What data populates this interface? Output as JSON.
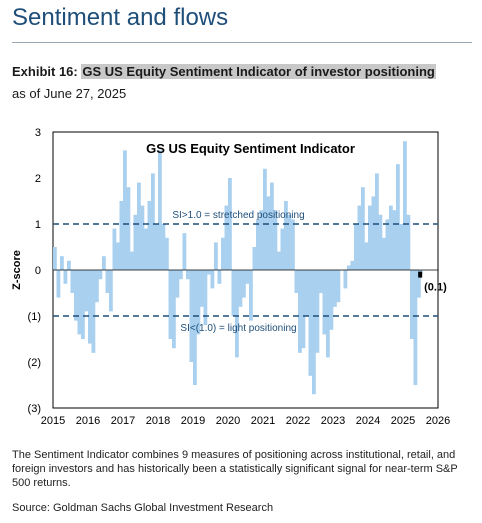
{
  "section_title": "Sentiment and flows",
  "exhibit": {
    "prefix": "Exhibit 16: ",
    "title": "GS US Equity Sentiment Indicator of investor positioning",
    "as_of": "as of June 27, 2025"
  },
  "footnote": "The Sentiment Indicator combines 9 measures of positioning across institutional, retail, and foreign investors and has historically been a statistically significant signal for near-term S&P 500 returns.",
  "source": "Source: Goldman Sachs Global Investment Research",
  "colors": {
    "bar": "#a9d0ef",
    "threshold": "#1f4e79",
    "title_blue": "#1f4e79",
    "latest_marker": "#000000"
  },
  "chart_data": {
    "type": "bar",
    "title": "GS US Equity  Sentiment Indicator",
    "ylabel": "Z-score",
    "xlabel": "",
    "ylim": [
      -3,
      3
    ],
    "xlim": [
      2015,
      2026
    ],
    "x_ticks": [
      "2015",
      "2016",
      "2017",
      "2018",
      "2019",
      "2020",
      "2021",
      "2022",
      "2023",
      "2024",
      "2025",
      "2026"
    ],
    "y_ticks": [
      {
        "value": 3,
        "label": "3"
      },
      {
        "value": 2,
        "label": "2"
      },
      {
        "value": 1,
        "label": "1"
      },
      {
        "value": 0,
        "label": "0"
      },
      {
        "value": -1,
        "label": "(1)"
      },
      {
        "value": -2,
        "label": "(2)"
      },
      {
        "value": -3,
        "label": "(3)"
      }
    ],
    "reference_lines": [
      {
        "y": 1.0,
        "label": "SI>1.0 = stretched positioning"
      },
      {
        "y": -1.0,
        "label": "SI<(1.0) = light positioning"
      }
    ],
    "latest": {
      "x": 2025.49,
      "y": -0.1,
      "label": "(0.1)"
    },
    "series": [
      {
        "x": [
          2015.0,
          2015.1,
          2015.2,
          2015.3,
          2015.4,
          2015.5,
          2015.6,
          2015.7,
          2015.8,
          2015.9,
          2016.0,
          2016.1,
          2016.2,
          2016.3,
          2016.4,
          2016.5,
          2016.6,
          2016.7,
          2016.8,
          2016.9,
          2017.0,
          2017.1,
          2017.2,
          2017.3,
          2017.4,
          2017.5,
          2017.6,
          2017.7,
          2017.8,
          2017.9,
          2018.0,
          2018.1,
          2018.2,
          2018.3,
          2018.4,
          2018.5,
          2018.6,
          2018.7,
          2018.8,
          2018.9,
          2019.0,
          2019.1,
          2019.2,
          2019.3,
          2019.4,
          2019.5,
          2019.6,
          2019.7,
          2019.8,
          2019.9,
          2020.0,
          2020.1,
          2020.2,
          2020.3,
          2020.4,
          2020.5,
          2020.6,
          2020.7,
          2020.8,
          2020.9,
          2021.0,
          2021.1,
          2021.2,
          2021.3,
          2021.4,
          2021.5,
          2021.6,
          2021.7,
          2021.8,
          2021.9,
          2022.0,
          2022.1,
          2022.2,
          2022.3,
          2022.4,
          2022.5,
          2022.6,
          2022.7,
          2022.8,
          2022.9,
          2023.0,
          2023.1,
          2023.2,
          2023.3,
          2023.4,
          2023.5,
          2023.6,
          2023.7,
          2023.8,
          2023.9,
          2024.0,
          2024.1,
          2024.2,
          2024.3,
          2024.4,
          2024.5,
          2024.6,
          2024.7,
          2024.8,
          2024.9,
          2025.0,
          2025.1,
          2025.2,
          2025.3,
          2025.4,
          2025.45
        ],
        "values": [
          0.5,
          -0.6,
          0.3,
          -0.3,
          0.2,
          -0.5,
          -1.1,
          -1.4,
          -1.5,
          -0.9,
          -1.6,
          -1.8,
          -0.7,
          -0.2,
          0.3,
          -0.5,
          -0.9,
          0.9,
          0.6,
          1.5,
          2.6,
          1.8,
          0.4,
          1.2,
          1.9,
          1.4,
          0.9,
          1.5,
          2.1,
          1.0,
          2.6,
          1.0,
          0.7,
          -1.5,
          -1.7,
          -0.6,
          -0.2,
          0.8,
          -0.2,
          -2.0,
          -2.5,
          -1.4,
          -0.8,
          -1.2,
          -0.1,
          -0.4,
          0.6,
          -0.3,
          0.7,
          1.4,
          2.0,
          -1.0,
          -1.9,
          -0.8,
          -0.6,
          -0.3,
          -1.1,
          0.5,
          1.1,
          1.3,
          2.2,
          1.6,
          1.9,
          1.3,
          0.4,
          0.9,
          1.5,
          1.2,
          1.1,
          -0.5,
          -1.8,
          -1.7,
          -1.0,
          -2.3,
          -2.7,
          -1.8,
          -0.5,
          -1.4,
          -1.9,
          -1.3,
          -0.8,
          -0.7,
          0.0,
          -0.4,
          0.1,
          0.2,
          1.0,
          1.4,
          1.8,
          0.6,
          1.4,
          1.6,
          2.1,
          1.2,
          0.7,
          1.1,
          1.4,
          1.3,
          2.3,
          1.0,
          2.8,
          1.2,
          -1.5,
          -2.5,
          -0.6,
          -0.1
        ]
      }
    ]
  }
}
